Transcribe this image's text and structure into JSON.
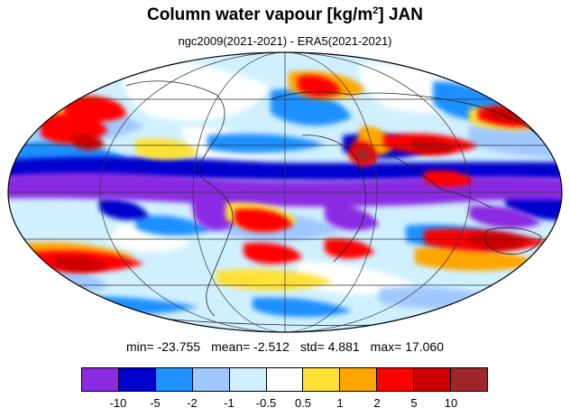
{
  "title": {
    "main": "Column water vapour [kg/m",
    "sup": "2",
    "tail": "] JAN"
  },
  "subtitle": "ngc2009(2021-2021) - ERA5(2021-2021)",
  "stats": {
    "min_label": "min=",
    "min": "-23.755",
    "mean_label": "mean=",
    "mean": "-2.512",
    "std_label": "std=",
    "std": "4.881",
    "max_label": "max=",
    "max": "17.060"
  },
  "map": {
    "projection": "mollweide",
    "ocean_color": "#ffffff",
    "coastline_color": "#222222",
    "graticule_color": "#333333"
  },
  "legend": {
    "ticks": [
      "-10",
      "-5",
      "-2",
      "-1",
      "-0.5",
      "0.5",
      "1",
      "2",
      "5",
      "10"
    ],
    "colors": [
      "#8a2be2",
      "#0000cd",
      "#1e90ff",
      "#a0c8ff",
      "#d0f0ff",
      "#ffffff",
      "#ffe135",
      "#ffa500",
      "#ff0000",
      "#cc0000",
      "#a0262a"
    ]
  }
}
